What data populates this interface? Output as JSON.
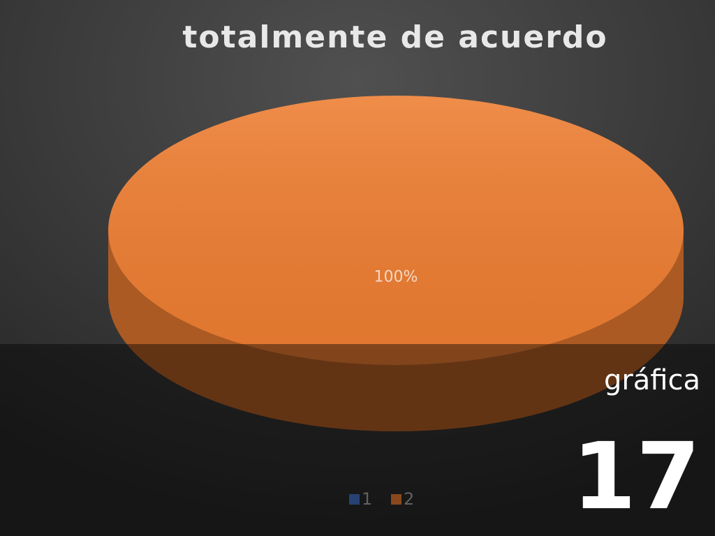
{
  "chart_data": {
    "type": "pie",
    "title": "totalmente de acuerdo",
    "categories": [
      "1",
      "2"
    ],
    "values": [
      0,
      100
    ],
    "value_labels": [
      null,
      "100%"
    ],
    "colors": [
      "#4472c4",
      "#ed7d31"
    ],
    "legend": "bottom"
  },
  "slide": {
    "caption": "gráfica",
    "number": "17"
  }
}
